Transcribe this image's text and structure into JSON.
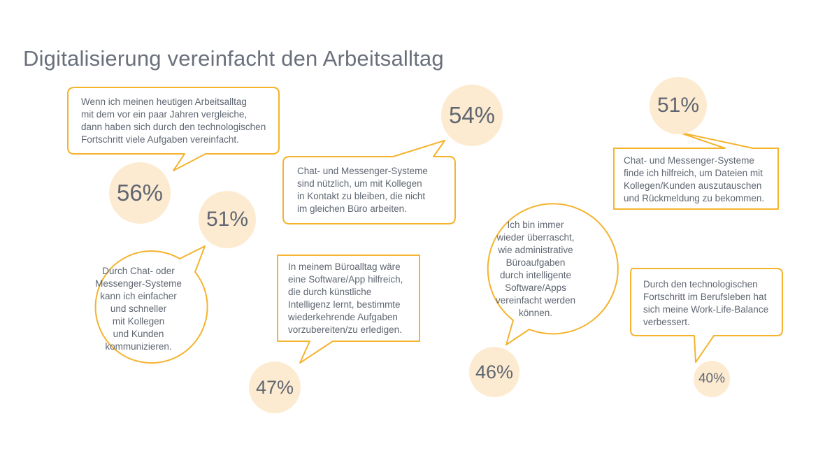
{
  "title": "Digitalisierung vereinfacht den Arbeitsalltag",
  "colors": {
    "bubble_stroke": "#f5b32e",
    "circle_fill": "#fdebd1",
    "text": "#5f6671"
  },
  "items": [
    {
      "percent": "56%",
      "lines": [
        "Wenn ich meinen heutigen Arbeitsalltag",
        "mit dem vor ein paar Jahren vergleiche,",
        "dann haben sich durch den technologischen",
        "Fortschritt viele Aufgaben vereinfacht."
      ]
    },
    {
      "percent": "54%",
      "lines": [
        "Chat- und Messenger-Systeme",
        "sind nützlich, um mit Kollegen",
        "in Kontakt zu bleiben, die nicht",
        "im gleichen Büro arbeiten."
      ]
    },
    {
      "percent": "51%",
      "lines": [
        "Chat- und Messenger-Systeme",
        "finde ich hilfreich, um Dateien mit",
        "Kollegen/Kunden auszutauschen",
        "und Rückmeldung zu bekommen."
      ]
    },
    {
      "percent": "51%",
      "lines": [
        "Durch Chat- oder",
        "Messenger-Systeme",
        "kann ich einfacher",
        "und schneller",
        "mit Kollegen",
        "und Kunden",
        "kommunizieren."
      ]
    },
    {
      "percent": "47%",
      "lines": [
        "In meinem Büroalltag wäre",
        "eine Software/App hilfreich,",
        "die durch künstliche",
        "Intelligenz lernt, bestimmte",
        "wiederkehrende Aufgaben",
        "vorzubereiten/zu erledigen."
      ]
    },
    {
      "percent": "46%",
      "lines": [
        "Ich bin immer",
        "wieder überrascht,",
        "wie administrative",
        "Büroaufgaben",
        "durch intelligente",
        "Software/Apps",
        "vereinfacht werden",
        "können."
      ]
    },
    {
      "percent": "40%",
      "lines": [
        "Durch den technologischen",
        "Fortschritt im Berufsleben hat",
        "sich meine Work-Life-Balance",
        "verbessert."
      ]
    }
  ]
}
